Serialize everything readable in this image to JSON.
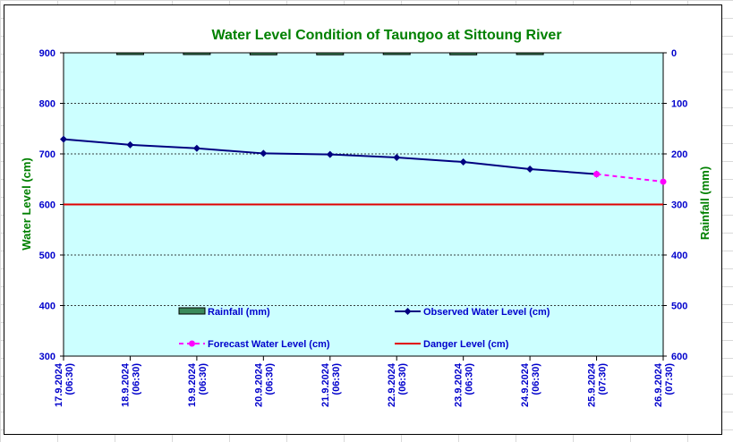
{
  "chart_data": {
    "type": "line",
    "title": "Water Level Condition of Taungoo at  Sittoung River",
    "ylabel": "Water Level (cm)",
    "y2label": "Rainfall (mm)",
    "ylim": [
      300,
      900
    ],
    "y2lim": [
      0,
      600
    ],
    "y2_inverted": true,
    "yticks": [
      900,
      800,
      700,
      600,
      500,
      400,
      300
    ],
    "y2ticks": [
      0,
      100,
      200,
      300,
      400,
      500,
      600
    ],
    "categories": [
      [
        "17.9.2024",
        "(06:30)"
      ],
      [
        "18.9.2024",
        "(06:30)"
      ],
      [
        "19.9.2024",
        "(06:30)"
      ],
      [
        "20.9.2024",
        "(06:30)"
      ],
      [
        "21.9.2024",
        "(06:30)"
      ],
      [
        "22.9.2024",
        "(06:30)"
      ],
      [
        "23.9.2024",
        "(06:30)"
      ],
      [
        "24.9.2024",
        "(06:30)"
      ],
      [
        "25.9.2024",
        "(07:30)"
      ],
      [
        "26.9.2024",
        "(07:30)"
      ]
    ],
    "grid": true,
    "legend_placement": "bottom-center",
    "series": [
      {
        "name": "Rainfall (mm)",
        "type": "bar",
        "axis": "right",
        "color": "#3a8a5a",
        "values": [
          null,
          1,
          1,
          4,
          4,
          1,
          4,
          1,
          null,
          null
        ]
      },
      {
        "name": "Observed Water Level (cm)",
        "type": "line",
        "axis": "left",
        "color": "#000080",
        "marker": "diamond",
        "values": [
          729,
          718,
          711,
          701,
          699,
          693,
          684,
          670,
          660,
          null
        ]
      },
      {
        "name": "Forecast Water Level (cm)",
        "type": "line",
        "axis": "left",
        "color": "#ff00ff",
        "dashed": true,
        "marker": "circle",
        "values": [
          null,
          null,
          null,
          null,
          null,
          null,
          null,
          null,
          660,
          645
        ]
      },
      {
        "name": "Danger Level (cm)",
        "type": "line",
        "axis": "left",
        "color": "#e00000",
        "values": [
          600,
          600,
          600,
          600,
          600,
          600,
          600,
          600,
          600,
          600
        ]
      }
    ],
    "colors": {
      "title": "#008000",
      "axis_label": "#008000",
      "tick_label": "#0000cc",
      "plot_bg": "#ccffff",
      "legend_text": "#0000cc"
    }
  }
}
